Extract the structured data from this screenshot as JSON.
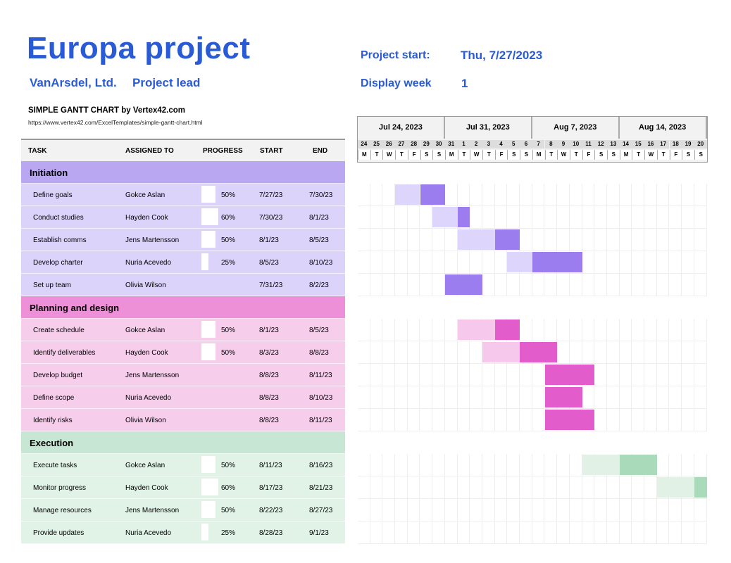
{
  "title": "Europa project",
  "company": "VanArsdel, Ltd.",
  "project_lead_label": "Project lead",
  "project_start_label": "Project start:",
  "project_start_value": "Thu, 7/27/2023",
  "display_week_label": "Display week",
  "display_week_value": "1",
  "subtitle": "SIMPLE GANTT CHART by Vertex42.com",
  "url": "https://www.vertex42.com/ExcelTemplates/simple-gantt-chart.html",
  "columns": {
    "task": "TASK",
    "assigned": "ASSIGNED TO",
    "progress": "PROGRESS",
    "start": "START",
    "end": "END"
  },
  "timeline": {
    "weeks": [
      "Jul 24, 2023",
      "Jul 31, 2023",
      "Aug 7, 2023",
      "Aug 14, 2023"
    ],
    "day_numbers": [
      "24",
      "25",
      "26",
      "27",
      "28",
      "29",
      "30",
      "31",
      "1",
      "2",
      "3",
      "4",
      "5",
      "6",
      "7",
      "8",
      "9",
      "10",
      "11",
      "12",
      "13",
      "14",
      "15",
      "16",
      "17",
      "18",
      "19",
      "20"
    ],
    "day_letters": [
      "M",
      "T",
      "W",
      "T",
      "F",
      "S",
      "S",
      "M",
      "T",
      "W",
      "T",
      "F",
      "S",
      "S",
      "M",
      "T",
      "W",
      "T",
      "F",
      "S",
      "S",
      "M",
      "T",
      "W",
      "T",
      "F",
      "S",
      "S"
    ]
  },
  "sections": [
    {
      "name": "Initiation",
      "colors": {
        "header": "#b9a7f2",
        "row": "#dcd3fb",
        "bar": "#9b7df0",
        "bar_light": "#ddd5fb"
      },
      "tasks": [
        {
          "task": "Define goals",
          "assigned": "Gokce Aslan",
          "progress": "50%",
          "start": "7/27/23",
          "end": "7/30/23"
        },
        {
          "task": "Conduct studies",
          "assigned": "Hayden Cook",
          "progress": "60%",
          "start": "7/30/23",
          "end": "8/1/23"
        },
        {
          "task": "Establish comms",
          "assigned": "Jens Martensson",
          "progress": "50%",
          "start": "8/1/23",
          "end": "8/5/23"
        },
        {
          "task": "Develop charter",
          "assigned": "Nuria Acevedo",
          "progress": "25%",
          "start": "8/5/23",
          "end": "8/10/23"
        },
        {
          "task": "Set up team",
          "assigned": "Olivia Wilson",
          "progress": "",
          "start": "7/31/23",
          "end": "8/2/23"
        }
      ]
    },
    {
      "name": "Planning and design",
      "colors": {
        "header": "#ee90d8",
        "row": "#f6cdeb",
        "bar": "#e35ccc",
        "bar_light": "#f6c9ec"
      },
      "tasks": [
        {
          "task": "Create schedule",
          "assigned": "Gokce Aslan",
          "progress": "50%",
          "start": "8/1/23",
          "end": "8/5/23"
        },
        {
          "task": "Identify deliverables",
          "assigned": "Hayden Cook",
          "progress": "50%",
          "start": "8/3/23",
          "end": "8/8/23"
        },
        {
          "task": "Develop budget",
          "assigned": "Jens Martensson",
          "progress": "",
          "start": "8/8/23",
          "end": "8/11/23"
        },
        {
          "task": "Define scope",
          "assigned": "Nuria Acevedo",
          "progress": "",
          "start": "8/8/23",
          "end": "8/10/23"
        },
        {
          "task": "Identify risks",
          "assigned": "Olivia Wilson",
          "progress": "",
          "start": "8/8/23",
          "end": "8/11/23"
        }
      ]
    },
    {
      "name": "Execution",
      "colors": {
        "header": "#c7e6d3",
        "row": "#e1f2e7",
        "bar": "#a9dbbb",
        "bar_light": "#e2f1e6"
      },
      "tasks": [
        {
          "task": "Execute tasks",
          "assigned": "Gokce Aslan",
          "progress": "50%",
          "start": "8/11/23",
          "end": "8/16/23"
        },
        {
          "task": "Monitor progress",
          "assigned": "Hayden Cook",
          "progress": "60%",
          "start": "8/17/23",
          "end": "8/21/23"
        },
        {
          "task": "Manage resources",
          "assigned": "Jens Martensson",
          "progress": "50%",
          "start": "8/22/23",
          "end": "8/27/23"
        },
        {
          "task": "Provide updates",
          "assigned": "Nuria Acevedo",
          "progress": "25%",
          "start": "8/28/23",
          "end": "9/1/23"
        }
      ]
    }
  ]
}
